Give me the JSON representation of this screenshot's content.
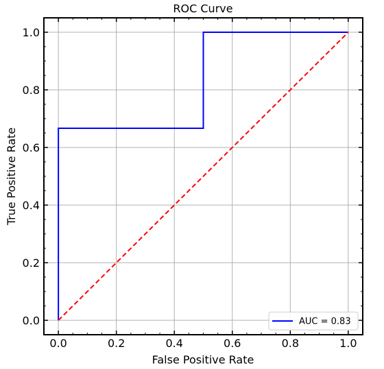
{
  "chart_data": {
    "type": "line",
    "title": "ROC Curve",
    "xlabel": "False Positive Rate",
    "ylabel": "True Positive Rate",
    "xlim": [
      -0.05,
      1.05
    ],
    "ylim": [
      -0.05,
      1.05
    ],
    "xticks": [
      0.0,
      0.2,
      0.4,
      0.6,
      0.8,
      1.0
    ],
    "yticks": [
      0.0,
      0.2,
      0.4,
      0.6,
      0.8,
      1.0
    ],
    "xtick_labels": [
      "0.0",
      "0.2",
      "0.4",
      "0.6",
      "0.8",
      "1.0"
    ],
    "ytick_labels": [
      "0.0",
      "0.2",
      "0.4",
      "0.6",
      "0.8",
      "1.0"
    ],
    "grid": true,
    "legend_position": "lower-right",
    "series": [
      {
        "name": "AUC = 0.83",
        "color": "#0000ff",
        "style": "solid",
        "x": [
          0.0,
          0.0,
          0.5,
          0.5,
          1.0
        ],
        "y": [
          0.0,
          0.6667,
          0.6667,
          1.0,
          1.0
        ]
      },
      {
        "color": "#ff0000",
        "style": "dashed",
        "x": [
          0.0,
          1.0
        ],
        "y": [
          0.0,
          1.0
        ]
      }
    ]
  }
}
